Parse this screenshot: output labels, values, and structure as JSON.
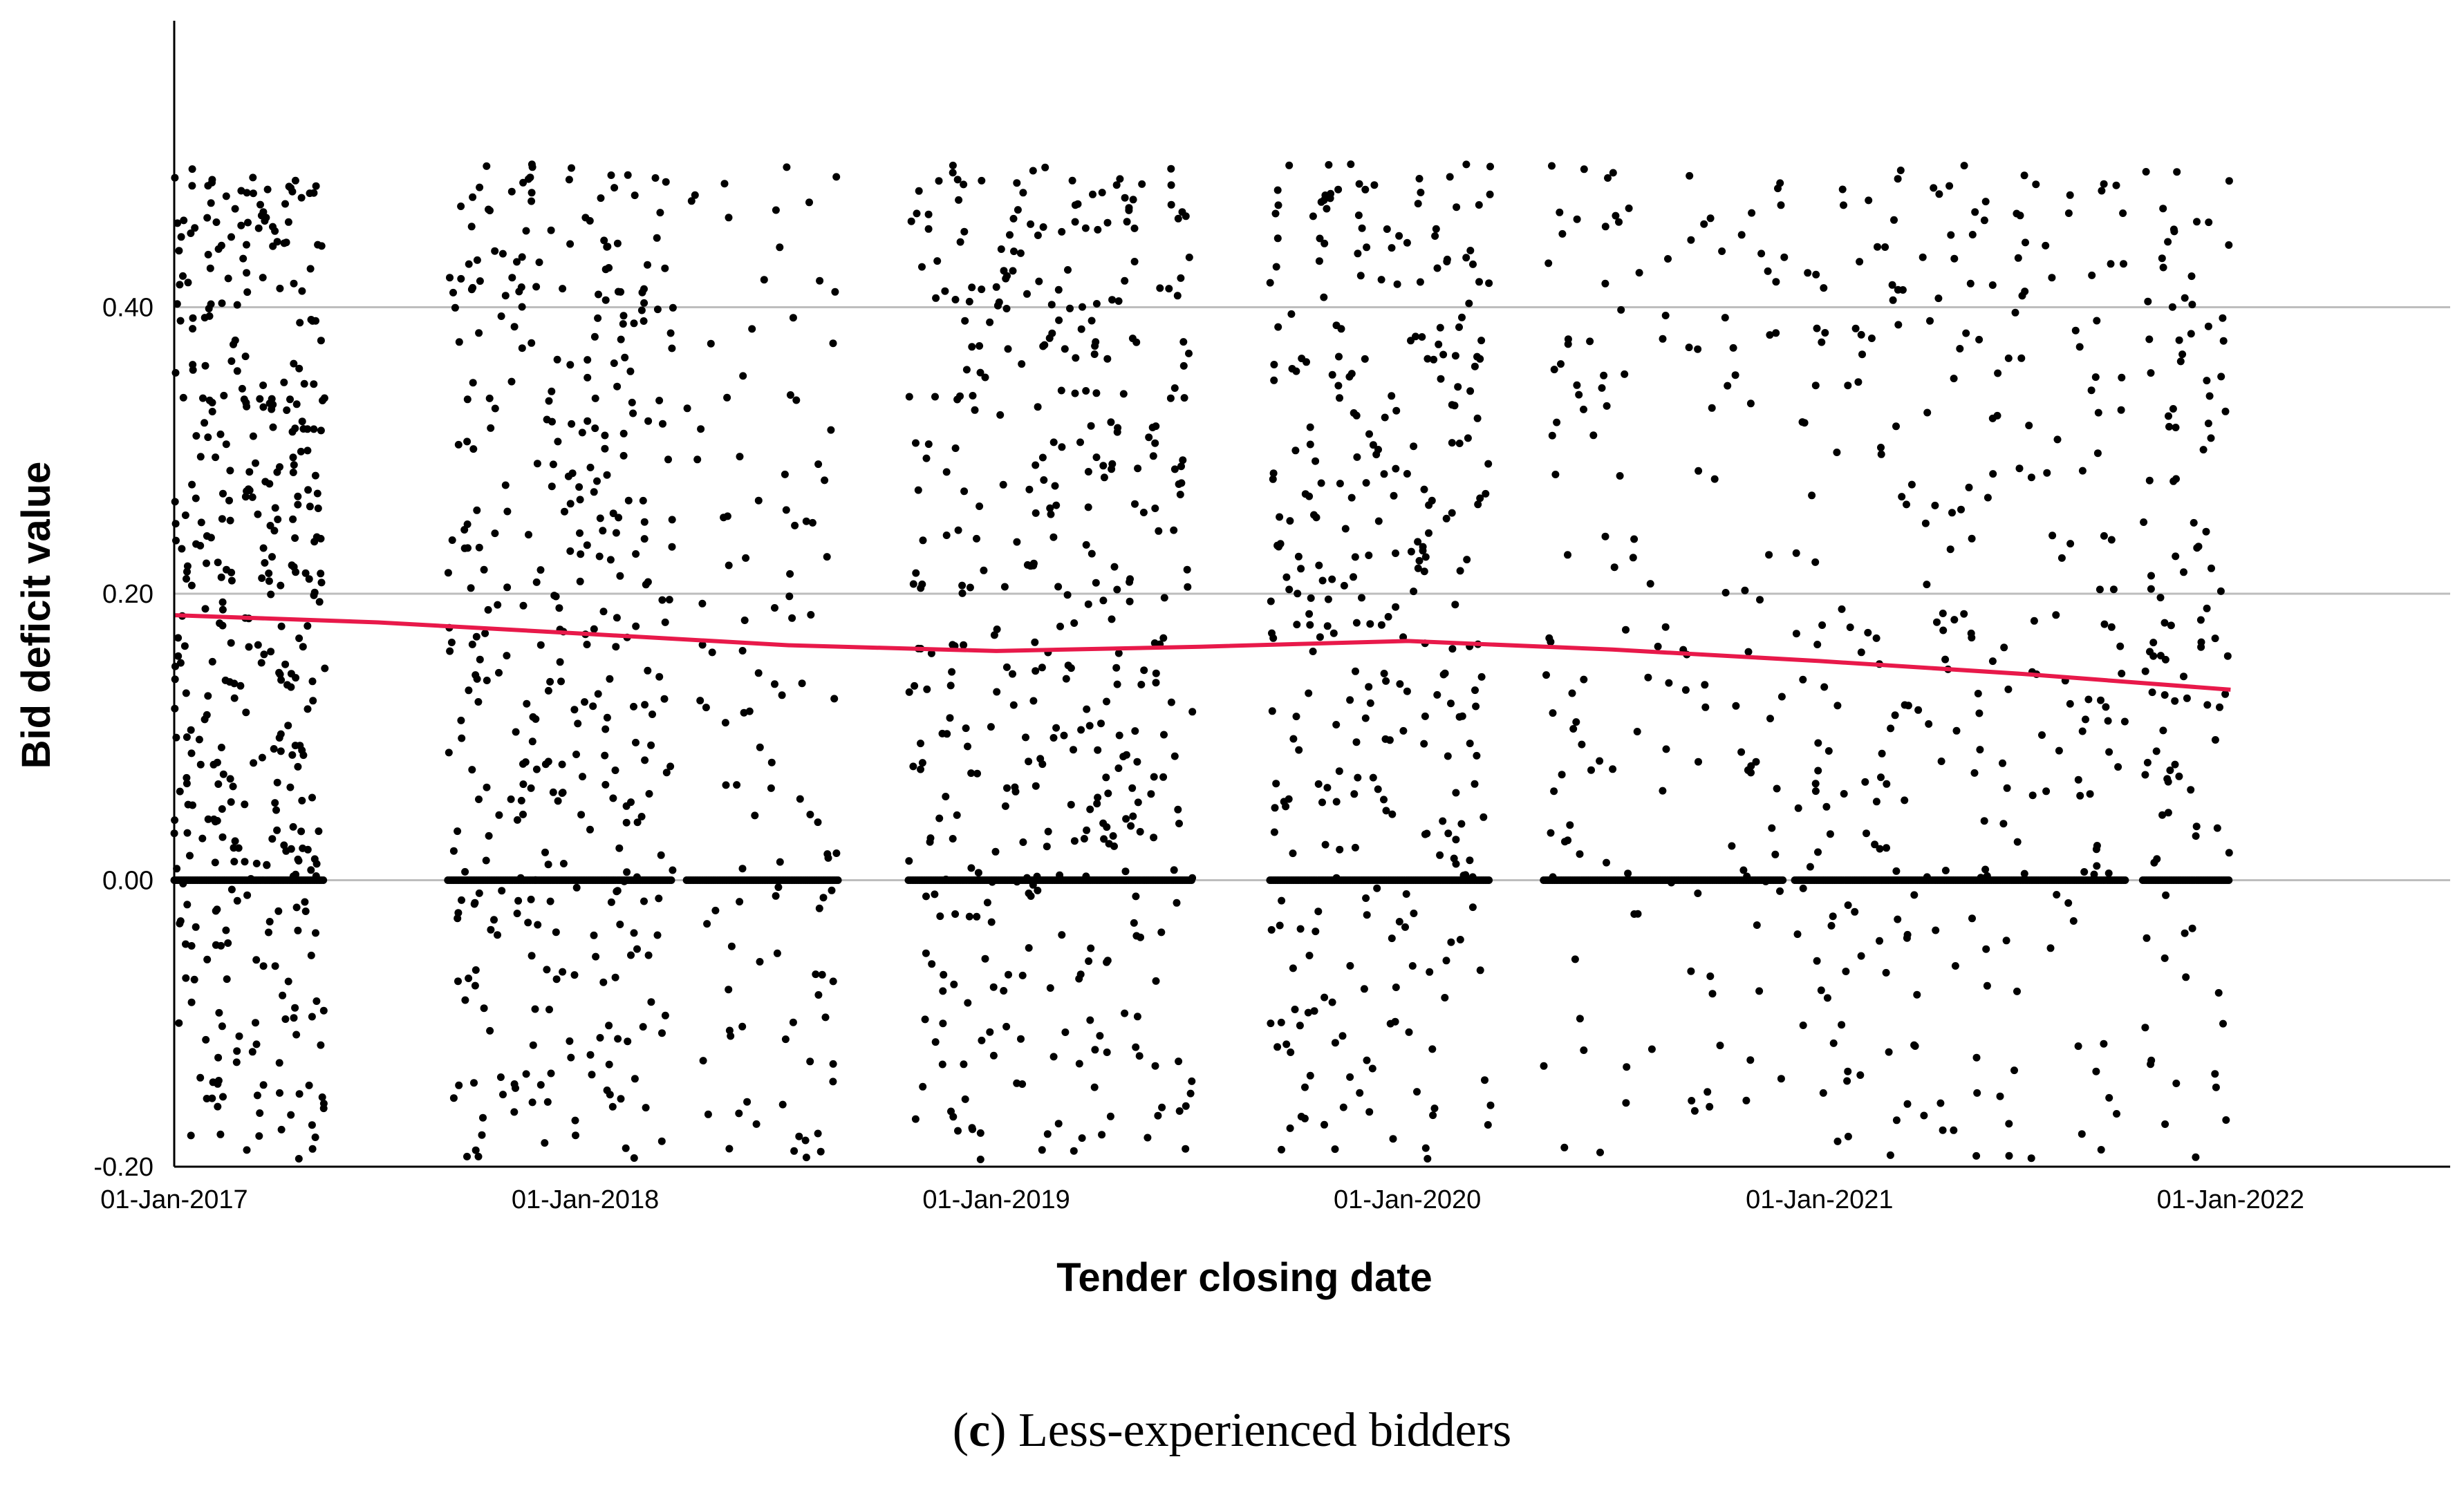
{
  "caption": {
    "letter": "c",
    "text": "Less-experienced bidders"
  },
  "colors": {
    "points": "#000000",
    "fit_line": "#e8194a",
    "gridline": "#bdbdbd",
    "axis": "#000000"
  },
  "chart_data": {
    "type": "scatter",
    "title": "",
    "xlabel": "Tender closing date",
    "ylabel": "Bid deficit value",
    "x_ticks": [
      "01-Jan-2017",
      "01-Jan-2018",
      "01-Jan-2019",
      "01-Jan-2020",
      "01-Jan-2021",
      "01-Jan-2022"
    ],
    "y_ticks": [
      "-0.20",
      "0.00",
      "0.20",
      "0.40"
    ],
    "xlim": [
      "2017-01-01",
      "2022-07-15"
    ],
    "ylim": [
      -0.2,
      0.6
    ],
    "grid": "horizontal",
    "fit_line": {
      "type": "loess",
      "x": [
        "2017-01-01",
        "2017-07-01",
        "2018-01-01",
        "2018-07-01",
        "2019-01-01",
        "2019-07-01",
        "2020-01-01",
        "2020-07-01",
        "2021-01-01",
        "2021-07-01",
        "2022-01-01"
      ],
      "y": [
        0.185,
        0.18,
        0.172,
        0.164,
        0.16,
        0.163,
        0.167,
        0.161,
        0.153,
        0.144,
        0.133
      ]
    },
    "point_clusters": [
      {
        "x_start": "2017-01-01",
        "x_end": "2017-05-15",
        "count": 420
      },
      {
        "x_start": "2017-09-01",
        "x_end": "2018-03-20",
        "count": 380
      },
      {
        "x_start": "2018-04-01",
        "x_end": "2018-08-15",
        "count": 110
      },
      {
        "x_start": "2018-10-15",
        "x_end": "2019-06-25",
        "count": 430
      },
      {
        "x_start": "2019-09-01",
        "x_end": "2020-03-15",
        "count": 330
      },
      {
        "x_start": "2020-05-01",
        "x_end": "2020-12-01",
        "count": 150
      },
      {
        "x_start": "2020-12-10",
        "x_end": "2021-10-01",
        "count": 280
      },
      {
        "x_start": "2021-10-15",
        "x_end": "2022-01-01",
        "count": 110
      }
    ],
    "zero_line_points": true
  }
}
